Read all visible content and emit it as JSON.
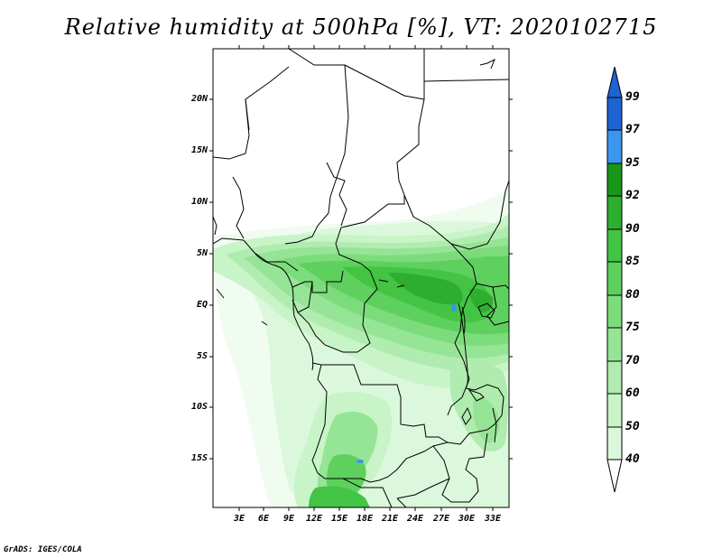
{
  "title": "Relative humidity at 500hPa [%], VT: 2020102715",
  "credit": "GrADS: IGES/COLA",
  "map": {
    "lat_labels": [
      "20N",
      "15N",
      "10N",
      "5N",
      "EQ",
      "5S",
      "10S",
      "15S"
    ],
    "lon_labels": [
      "3E",
      "6E",
      "9E",
      "12E",
      "15E",
      "18E",
      "21E",
      "24E",
      "27E",
      "30E",
      "33E"
    ]
  },
  "colorbar": {
    "labels": [
      "99",
      "97",
      "95",
      "92",
      "90",
      "85",
      "80",
      "75",
      "70",
      "60",
      "50",
      "40"
    ],
    "colors": {
      "c40": "#f0fcf0",
      "c50": "#dcf8dc",
      "c60": "#c8f4c8",
      "c70": "#b0ecb0",
      "c75": "#96e496",
      "c80": "#7cdc7c",
      "c85": "#5ed05e",
      "c90": "#44c444",
      "c92": "#2eae2e",
      "c95": "#1a961a",
      "c97": "#3c96ee",
      "c99": "#1e64d2"
    }
  }
}
